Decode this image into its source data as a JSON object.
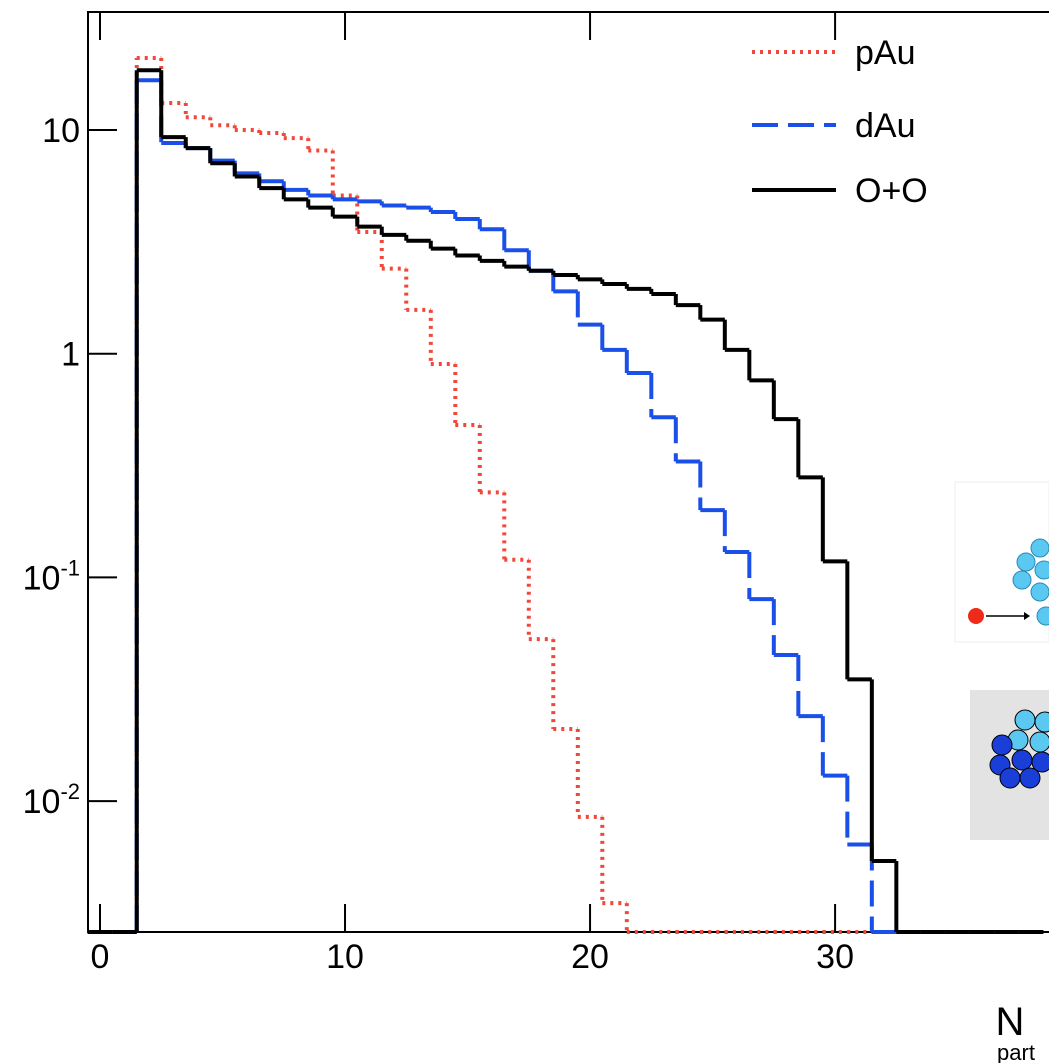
{
  "chart_data": {
    "type": "histogram",
    "log_y": true,
    "grid": false,
    "legend_position": "upper right",
    "xlabel": "N",
    "xlabel_subscript": "part",
    "xlim": [
      -0.53,
      38.73
    ],
    "xticks": [
      0,
      10,
      20,
      30
    ],
    "ylim": [
      0.0026,
      33.7
    ],
    "yticks": [
      {
        "value": 0.01,
        "label": "10^-2"
      },
      {
        "value": 0.1,
        "label": "10^-1"
      },
      1,
      10
    ],
    "bins": [
      -0.5,
      0.5,
      1.5,
      2.5,
      3.5,
      4.5,
      5.5,
      6.5,
      7.5,
      8.5,
      9.5,
      10.5,
      11.5,
      12.5,
      13.5,
      14.5,
      15.5,
      16.5,
      17.5,
      18.5,
      19.5,
      20.5,
      21.5,
      22.5,
      23.5,
      24.5,
      25.5,
      26.5,
      27.5,
      28.5,
      29.5,
      30.5,
      31.5,
      32.5,
      33.5,
      34.5,
      35.5,
      36.5,
      37.5,
      38.5
    ],
    "series": [
      {
        "name": "pAu",
        "color": "#f0483a",
        "style": "dotted",
        "values": [
          0,
          0,
          21,
          13.2,
          11.4,
          10.5,
          10,
          9.7,
          9.2,
          8.1,
          5.1,
          3.5,
          2.4,
          1.57,
          0.9,
          0.48,
          0.24,
          0.12,
          0.053,
          0.021,
          0.0085,
          0.0035,
          0,
          0,
          0,
          0,
          0,
          0,
          0,
          0,
          0,
          0,
          0,
          0,
          0,
          0,
          0,
          0,
          0
        ]
      },
      {
        "name": "dAu",
        "color": "#1a4fe8",
        "style": "dashed",
        "values": [
          0,
          0,
          16.7,
          8.75,
          8.3,
          7.3,
          6.4,
          5.9,
          5.4,
          5.1,
          4.9,
          4.8,
          4.6,
          4.5,
          4.3,
          4.0,
          3.6,
          2.9,
          2.35,
          1.9,
          1.35,
          1.04,
          0.82,
          0.52,
          0.33,
          0.2,
          0.13,
          0.08,
          0.045,
          0.024,
          0.013,
          0.0064,
          0,
          0,
          0,
          0,
          0,
          0,
          0
        ]
      },
      {
        "name": "O+O",
        "color": "#000000",
        "style": "solid",
        "values": [
          0,
          0,
          18.5,
          9.3,
          8.3,
          7.1,
          6.2,
          5.5,
          4.9,
          4.5,
          4.1,
          3.7,
          3.4,
          3.2,
          2.95,
          2.75,
          2.6,
          2.45,
          2.35,
          2.25,
          2.15,
          2.05,
          1.95,
          1.85,
          1.65,
          1.42,
          1.04,
          0.76,
          0.51,
          0.28,
          0.118,
          0.035,
          0.0054,
          0,
          0,
          0,
          0,
          0,
          0
        ]
      }
    ]
  }
}
